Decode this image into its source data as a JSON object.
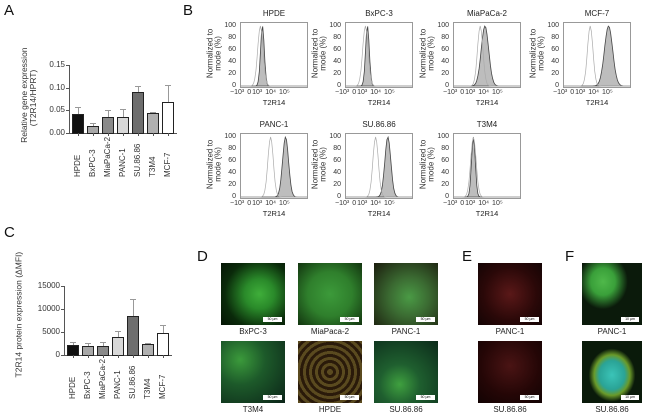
{
  "panels": {
    "A": {
      "label": "A"
    },
    "B": {
      "label": "B"
    },
    "C": {
      "label": "C"
    },
    "D": {
      "label": "D"
    },
    "E": {
      "label": "E"
    },
    "F": {
      "label": "F"
    }
  },
  "chart_data": [
    {
      "panel": "A",
      "type": "bar",
      "ylabel": "Relative gene expression (T2R14/HPRT)",
      "ylabel_line1": "Relative gene expression",
      "ylabel_line2": "(T2R14/HPRT)",
      "categories": [
        "HPDE",
        "BxPC-3",
        "MiaPaCa-2",
        "PANC-1",
        "SU.86.86",
        "T3M4",
        "MCF-7"
      ],
      "values": [
        0.043,
        0.016,
        0.035,
        0.036,
        0.09,
        0.044,
        0.068
      ],
      "errors": [
        0.015,
        0.006,
        0.015,
        0.016,
        0.014,
        0.003,
        0.037
      ],
      "bar_colors": [
        "#111111",
        "#a8a8a8",
        "#8a8a8a",
        "#d8d8d8",
        "#6e6e6e",
        "#b0b0b0",
        "#ffffff"
      ],
      "yticks": [
        "0.00",
        "0.05",
        "0.10",
        "0.15"
      ],
      "ylim": [
        0,
        0.15
      ]
    },
    {
      "panel": "C",
      "type": "bar",
      "ylabel": "T2R14 protein expression (ΔMFI)",
      "categories": [
        "HPDE",
        "BxPC-3",
        "MiaPaCa-2",
        "PANC-1",
        "SU.86.86",
        "T3M4",
        "MCF-7"
      ],
      "values": [
        2100,
        1900,
        1900,
        4000,
        8500,
        2300,
        4700
      ],
      "errors": [
        800,
        800,
        1000,
        1200,
        3700,
        400,
        1900
      ],
      "bar_colors": [
        "#111111",
        "#a8a8a8",
        "#8a8a8a",
        "#d8d8d8",
        "#6e6e6e",
        "#b0b0b0",
        "#ffffff"
      ],
      "yticks": [
        "0",
        "5000",
        "10000",
        "15000"
      ],
      "ylim": [
        0,
        15000
      ]
    },
    {
      "panel": "B",
      "type": "area",
      "description": "Flow cytometry histograms, T2R14 staining (filled grey) vs control (open line)",
      "ylabel": "Normalized to mode (%)",
      "ylabel_line1": "Normalized to",
      "ylabel_line2": "mode (%)",
      "xlabel": "T2R14",
      "yticks": [
        "0",
        "20",
        "40",
        "60",
        "80",
        "100"
      ],
      "xticks": [
        "−10³",
        "0",
        "10³",
        "10⁴",
        "10⁵"
      ],
      "histograms": [
        {
          "title": "HPDE",
          "control_peak": 0.3,
          "stain_peak": 0.33,
          "stain_width": 0.05
        },
        {
          "title": "BxPC-3",
          "control_peak": 0.3,
          "stain_peak": 0.33,
          "stain_width": 0.05
        },
        {
          "title": "MiaPaCa-2",
          "control_peak": 0.4,
          "stain_peak": 0.47,
          "stain_width": 0.1
        },
        {
          "title": "MCF-7",
          "control_peak": 0.4,
          "stain_peak": 0.67,
          "stain_width": 0.11
        },
        {
          "title": "PANC-1",
          "control_peak": 0.45,
          "stain_peak": 0.67,
          "stain_width": 0.08
        },
        {
          "title": "SU.86.86",
          "control_peak": 0.45,
          "stain_peak": 0.63,
          "stain_width": 0.08
        },
        {
          "title": "T3M4",
          "control_peak": 0.3,
          "stain_peak": 0.3,
          "stain_width": 0.05
        }
      ]
    }
  ],
  "micrographs": {
    "D": [
      {
        "caption": "BxPC-3",
        "scale": "50 µm",
        "style": "green"
      },
      {
        "caption": "MiaPaca-2",
        "scale": "50 µm",
        "style": "green-dense"
      },
      {
        "caption": "PANC-1",
        "scale": "50 µm",
        "style": "green-red"
      },
      {
        "caption": "T3M4",
        "scale": "50 µm",
        "style": "green-dark"
      },
      {
        "caption": "HPDE",
        "scale": "50 µm",
        "style": "red-green"
      },
      {
        "caption": "SU.86.86",
        "scale": "50 µm",
        "style": "green-sparse"
      }
    ],
    "E": [
      {
        "caption": "PANC-1",
        "scale": "50 µm",
        "style": "red"
      },
      {
        "caption": "SU.86.86",
        "scale": "50 µm",
        "style": "red-dark"
      }
    ],
    "F": [
      {
        "caption": "PANC-1",
        "scale": "10 µm",
        "style": "green-single"
      },
      {
        "caption": "SU.86.86",
        "scale": "10 µm",
        "style": "cyan-single"
      }
    ]
  }
}
